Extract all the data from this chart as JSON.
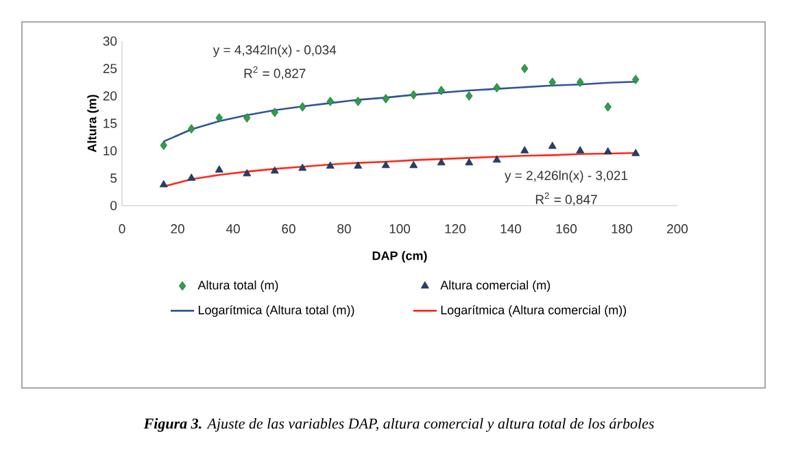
{
  "chart_data": {
    "type": "scatter",
    "xlabel": "DAP (cm)",
    "ylabel": "Altura (m)",
    "xlim": [
      0,
      200
    ],
    "xticks": [
      0,
      20,
      40,
      60,
      80,
      100,
      120,
      140,
      160,
      180,
      200
    ],
    "ylim": [
      0,
      30
    ],
    "yticks": [
      0,
      5,
      10,
      15,
      20,
      25,
      30
    ],
    "x": [
      15,
      25,
      35,
      45,
      55,
      65,
      75,
      85,
      95,
      105,
      115,
      125,
      135,
      145,
      155,
      165,
      175,
      185
    ],
    "series": [
      {
        "name": "Altura total (m)",
        "marker": "diamond",
        "color": "#2e9e48",
        "values": [
          11,
          14,
          16,
          16,
          17,
          18,
          19,
          19,
          19.5,
          20.2,
          21,
          20,
          21.5,
          25,
          22.5,
          22.5,
          18,
          23
        ]
      },
      {
        "name": "Altura comercial (m)",
        "marker": "triangle",
        "color": "#243f6b",
        "values": [
          3.8,
          5,
          6.5,
          5.8,
          6.3,
          6.8,
          7.2,
          7.2,
          7.3,
          7.3,
          7.8,
          7.8,
          8.3,
          10,
          10.8,
          10,
          9.8,
          9.5
        ]
      },
      {
        "name": "Logarítmica (Altura total (m))",
        "type": "line",
        "marker": "none",
        "color": "#2f5597",
        "values": [
          11.7,
          13.9,
          15.4,
          16.5,
          17.4,
          18.1,
          18.7,
          19.3,
          19.7,
          20.2,
          20.6,
          21.0,
          21.3,
          21.6,
          21.9,
          22.1,
          22.4,
          22.6
        ]
      },
      {
        "name": "Logarítmica (Altura comercial (m))",
        "type": "line",
        "marker": "none",
        "color": "#ff2a1a",
        "values": [
          3.5,
          4.8,
          5.6,
          6.2,
          6.7,
          7.1,
          7.5,
          7.8,
          8.0,
          8.3,
          8.5,
          8.7,
          8.9,
          9.1,
          9.2,
          9.4,
          9.5,
          9.6
        ]
      }
    ],
    "legend": "bottom",
    "annotations": [
      "y = 4,342ln(x) - 0,034",
      "R$^{2}$ = 0,827",
      "y = 2,426ln(x) - 3,021",
      "R$^{2}$ = 0,847",
      "**Figura 3.** Ajuste de las variables DAP, altura comercial y altura total de los árboles"
    ]
  }
}
